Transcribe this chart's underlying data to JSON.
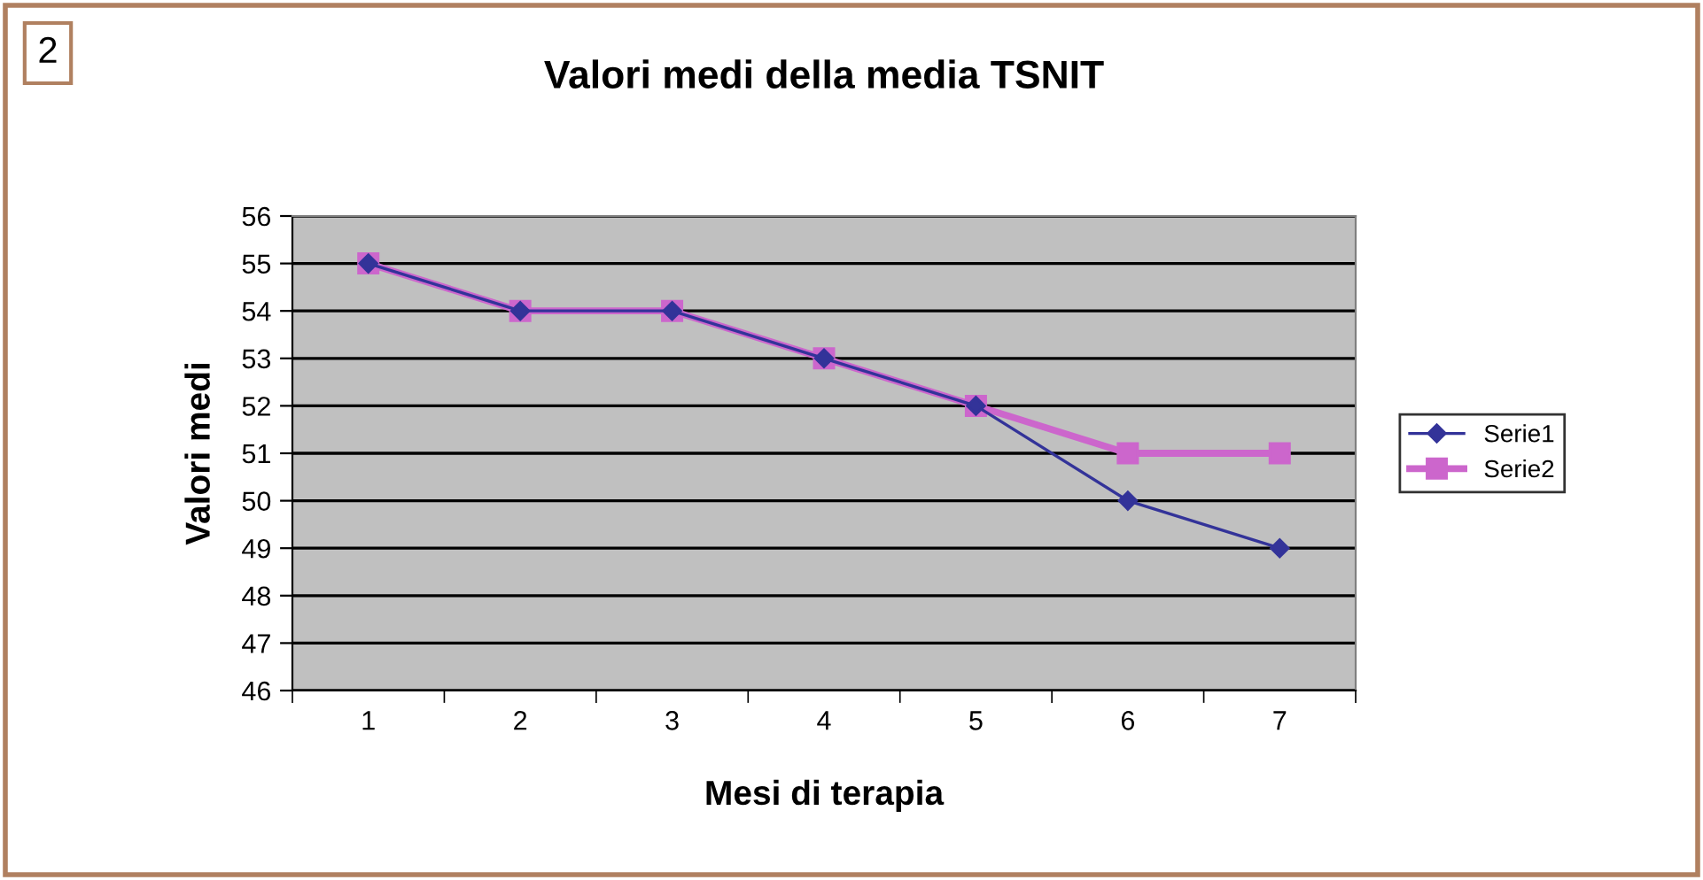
{
  "chart_data": {
    "type": "line",
    "title": "Valori medi della media TSNIT",
    "xlabel": "Mesi di terapia",
    "ylabel": "Valori medi",
    "categories": [
      "1",
      "2",
      "3",
      "4",
      "5",
      "6",
      "7"
    ],
    "series": [
      {
        "name": "Serie1",
        "color": "#333399",
        "marker": "diamond",
        "values": [
          55,
          54,
          54,
          53,
          52,
          50,
          49
        ]
      },
      {
        "name": "Serie2",
        "color": "#cc66cc",
        "marker": "square",
        "values": [
          55,
          54,
          54,
          53,
          52,
          51,
          51
        ]
      }
    ],
    "ylim": [
      46,
      56
    ],
    "yticks": [
      46,
      47,
      48,
      49,
      50,
      51,
      52,
      53,
      54,
      55,
      56
    ],
    "grid": "y",
    "legend": "right",
    "line_style": "solid",
    "annotations": [
      "2"
    ]
  }
}
